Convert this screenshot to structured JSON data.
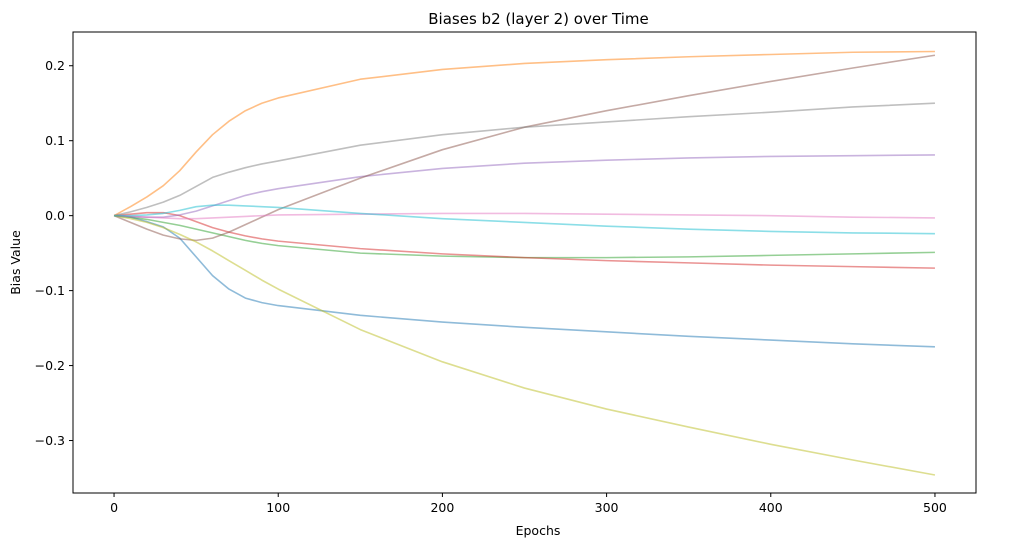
{
  "chart_data": {
    "type": "line",
    "title": "Biases b2 (layer 2) over Time",
    "xlabel": "Epochs",
    "ylabel": "Bias Value",
    "xlim": [
      -25,
      525
    ],
    "ylim": [
      -0.37,
      0.245
    ],
    "xticks": [
      0,
      100,
      200,
      300,
      400,
      500
    ],
    "xtick_labels": [
      "0",
      "100",
      "200",
      "300",
      "400",
      "500"
    ],
    "yticks": [
      -0.3,
      -0.2,
      -0.1,
      0.0,
      0.1,
      0.2
    ],
    "ytick_labels": [
      "−0.3",
      "−0.2",
      "−0.1",
      "0.0",
      "0.1",
      "0.2"
    ],
    "grid": false,
    "legend": "none",
    "series": [
      {
        "color": "#1f77b4",
        "x": [
          0,
          10,
          20,
          30,
          40,
          50,
          60,
          70,
          80,
          90,
          100,
          150,
          200,
          250,
          300,
          350,
          400,
          450,
          500
        ],
        "y": [
          0.0,
          -0.002,
          -0.008,
          -0.015,
          -0.03,
          -0.055,
          -0.08,
          -0.098,
          -0.11,
          -0.116,
          -0.12,
          -0.133,
          -0.142,
          -0.149,
          -0.155,
          -0.161,
          -0.166,
          -0.171,
          -0.175
        ]
      },
      {
        "color": "#ff7f0e",
        "x": [
          0,
          10,
          20,
          30,
          40,
          50,
          60,
          70,
          80,
          90,
          100,
          150,
          200,
          250,
          300,
          350,
          400,
          450,
          500
        ],
        "y": [
          0.0,
          0.012,
          0.025,
          0.04,
          0.06,
          0.085,
          0.108,
          0.126,
          0.14,
          0.15,
          0.157,
          0.182,
          0.195,
          0.203,
          0.208,
          0.212,
          0.215,
          0.218,
          0.219
        ]
      },
      {
        "color": "#2ca02c",
        "x": [
          0,
          10,
          20,
          30,
          40,
          50,
          60,
          70,
          80,
          90,
          100,
          150,
          200,
          250,
          300,
          350,
          400,
          450,
          500
        ],
        "y": [
          0.0,
          -0.002,
          -0.005,
          -0.009,
          -0.013,
          -0.018,
          -0.023,
          -0.028,
          -0.033,
          -0.037,
          -0.04,
          -0.05,
          -0.054,
          -0.056,
          -0.056,
          -0.055,
          -0.053,
          -0.051,
          -0.049
        ]
      },
      {
        "color": "#d62728",
        "x": [
          0,
          10,
          20,
          30,
          40,
          50,
          60,
          70,
          80,
          90,
          100,
          150,
          200,
          250,
          300,
          350,
          400,
          450,
          500
        ],
        "y": [
          0.0,
          0.002,
          0.004,
          0.004,
          0.0,
          -0.008,
          -0.016,
          -0.022,
          -0.027,
          -0.031,
          -0.034,
          -0.044,
          -0.051,
          -0.056,
          -0.06,
          -0.063,
          -0.066,
          -0.068,
          -0.07
        ]
      },
      {
        "color": "#9467bd",
        "x": [
          0,
          10,
          20,
          30,
          40,
          50,
          60,
          70,
          80,
          90,
          100,
          150,
          200,
          250,
          300,
          350,
          400,
          450,
          500
        ],
        "y": [
          0.0,
          -0.001,
          -0.002,
          -0.002,
          0.001,
          0.006,
          0.013,
          0.02,
          0.027,
          0.032,
          0.036,
          0.052,
          0.063,
          0.07,
          0.074,
          0.077,
          0.079,
          0.08,
          0.081
        ]
      },
      {
        "color": "#8c564b",
        "x": [
          0,
          10,
          20,
          30,
          40,
          50,
          60,
          70,
          80,
          90,
          100,
          150,
          200,
          250,
          300,
          350,
          400,
          450,
          500
        ],
        "y": [
          0.0,
          -0.009,
          -0.018,
          -0.026,
          -0.031,
          -0.033,
          -0.03,
          -0.022,
          -0.012,
          -0.002,
          0.008,
          0.05,
          0.088,
          0.118,
          0.14,
          0.16,
          0.179,
          0.197,
          0.214
        ]
      },
      {
        "color": "#e377c2",
        "x": [
          0,
          10,
          20,
          30,
          40,
          50,
          60,
          70,
          80,
          90,
          100,
          150,
          200,
          250,
          300,
          350,
          400,
          450,
          500
        ],
        "y": [
          0.0,
          -0.001,
          -0.002,
          -0.003,
          -0.004,
          -0.004,
          -0.003,
          -0.002,
          -0.001,
          0.0,
          0.001,
          0.002,
          0.003,
          0.003,
          0.002,
          0.001,
          0.0,
          -0.002,
          -0.003
        ]
      },
      {
        "color": "#7f7f7f",
        "x": [
          0,
          10,
          20,
          30,
          40,
          50,
          60,
          70,
          80,
          90,
          100,
          150,
          200,
          250,
          300,
          350,
          400,
          450,
          500
        ],
        "y": [
          0.0,
          0.005,
          0.011,
          0.018,
          0.027,
          0.039,
          0.051,
          0.058,
          0.064,
          0.069,
          0.073,
          0.094,
          0.108,
          0.118,
          0.125,
          0.132,
          0.138,
          0.145,
          0.15
        ]
      },
      {
        "color": "#bcbd22",
        "x": [
          0,
          10,
          20,
          30,
          40,
          50,
          60,
          70,
          80,
          90,
          100,
          150,
          200,
          250,
          300,
          350,
          400,
          450,
          500
        ],
        "y": [
          0.0,
          -0.004,
          -0.009,
          -0.016,
          -0.025,
          -0.035,
          -0.047,
          -0.06,
          -0.073,
          -0.086,
          -0.098,
          -0.152,
          -0.195,
          -0.23,
          -0.258,
          -0.282,
          -0.305,
          -0.326,
          -0.346
        ]
      },
      {
        "color": "#17becf",
        "x": [
          0,
          10,
          20,
          30,
          40,
          50,
          60,
          70,
          80,
          90,
          100,
          150,
          200,
          250,
          300,
          350,
          400,
          450,
          500
        ],
        "y": [
          0.0,
          0.0,
          0.001,
          0.003,
          0.007,
          0.012,
          0.014,
          0.014,
          0.013,
          0.012,
          0.011,
          0.003,
          -0.004,
          -0.009,
          -0.014,
          -0.018,
          -0.021,
          -0.023,
          -0.024
        ]
      }
    ]
  }
}
